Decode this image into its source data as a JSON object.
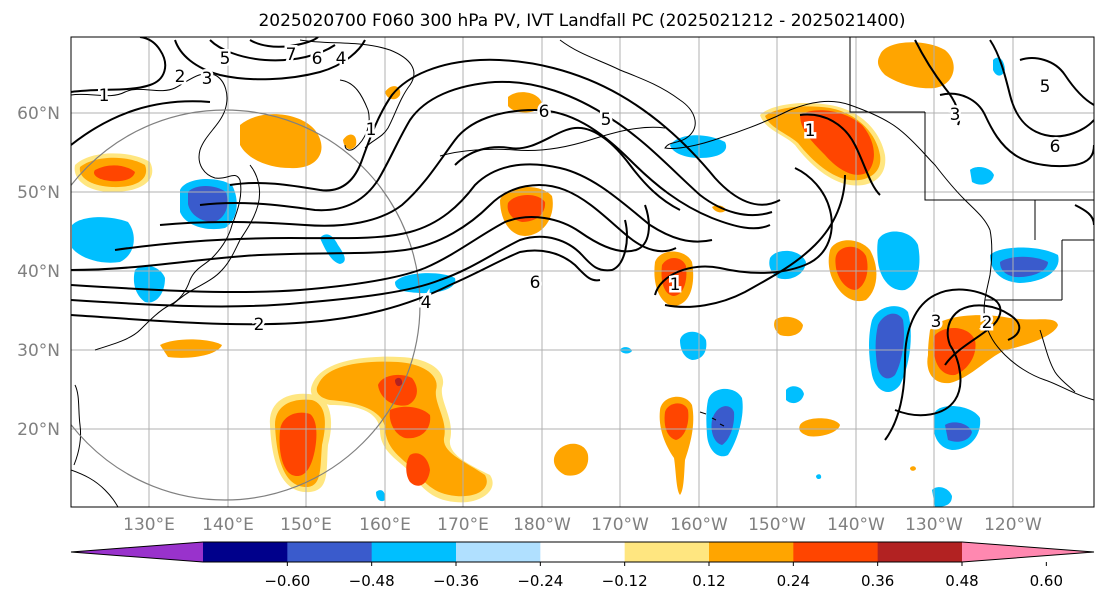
{
  "title": "2025020700 F060 300 hPa PV, IVT Landfall PC (2025021212 - 2025021400)",
  "lat_labels": [
    "60°N",
    "50°N",
    "40°N",
    "30°N",
    "20°N"
  ],
  "lon_labels": [
    "130°E",
    "140°E",
    "150°E",
    "160°E",
    "170°E",
    "180°W",
    "170°W",
    "160°W",
    "150°W",
    "140°W",
    "130°W",
    "120°W"
  ],
  "contour_labels": [
    "1",
    "2",
    "3",
    "5",
    "7",
    "6",
    "4",
    "1",
    "6",
    "5",
    "1",
    "6",
    "4",
    "2",
    "1",
    "3",
    "2",
    "6",
    "5",
    "3"
  ],
  "colorbar": {
    "ticks": [
      "−0.60",
      "−0.48",
      "−0.36",
      "−0.24",
      "−0.12",
      "0.12",
      "0.24",
      "0.36",
      "0.48",
      "0.60"
    ],
    "colors": [
      "#9932cc",
      "#00008b",
      "#3a5bcc",
      "#00bfff",
      "#b0e0ff",
      "#ffffff",
      "#ffe680",
      "#ffa500",
      "#ff4500",
      "#b22222",
      "#ff88b0"
    ]
  },
  "colors": {
    "pos_light": "#ffe680",
    "pos_mid": "#ffa500",
    "pos_strong": "#ff4500",
    "neg_light": "#b0e0ff",
    "neg_mid": "#00bfff",
    "neg_strong": "#3a5bcc"
  }
}
